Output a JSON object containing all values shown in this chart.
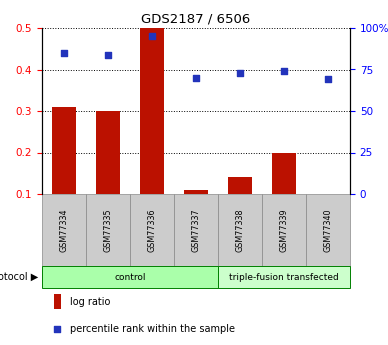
{
  "title": "GDS2187 / 6506",
  "samples": [
    "GSM77334",
    "GSM77335",
    "GSM77336",
    "GSM77337",
    "GSM77338",
    "GSM77339",
    "GSM77340"
  ],
  "log_ratio": [
    0.31,
    0.3,
    0.5,
    0.11,
    0.14,
    0.2,
    0.1
  ],
  "percentile_rank_pct": [
    85,
    84,
    95,
    70,
    73,
    74,
    69
  ],
  "ylim_left": [
    0.1,
    0.5
  ],
  "yticks_left": [
    0.1,
    0.2,
    0.3,
    0.4,
    0.5
  ],
  "yticks_right": [
    0,
    25,
    50,
    75,
    100
  ],
  "bar_color": "#bb1100",
  "scatter_color": "#2233bb",
  "bar_bottom": 0.1,
  "protocol_groups": [
    {
      "label": "control",
      "start": 0,
      "end": 3,
      "color": "#aaffaa"
    },
    {
      "label": "triple-fusion transfected",
      "start": 4,
      "end": 6,
      "color": "#ccffcc"
    }
  ],
  "protocol_label": "protocol ▶",
  "legend_bar_label": "log ratio",
  "legend_scatter_label": "percentile rank within the sample",
  "sample_box_color": "#cccccc",
  "sample_box_edge": "#888888"
}
